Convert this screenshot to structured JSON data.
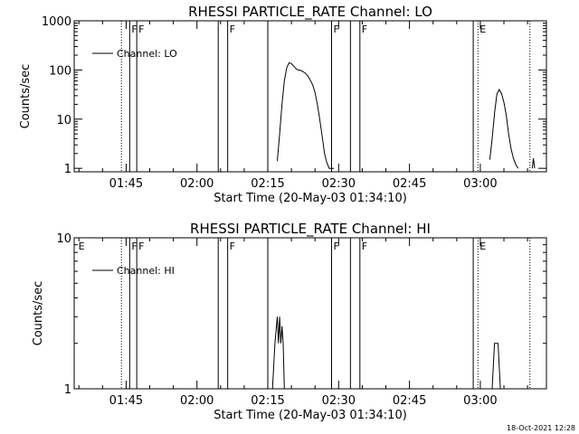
{
  "footer_timestamp": "18-Oct-2021 12:28",
  "chart_data": [
    {
      "type": "line",
      "title": "RHESSI PARTICLE_RATE Channel: LO",
      "xlabel": "Start Time (20-May-03 01:34:10)",
      "ylabel": "Counts/sec",
      "yscale": "log",
      "ylim": [
        0.85,
        1000
      ],
      "xlim": [
        "01:34",
        "03:14"
      ],
      "y_ticks": [
        "1",
        "10",
        "100",
        "1000"
      ],
      "x_ticks": [
        "01:45",
        "02:00",
        "02:15",
        "02:30",
        "02:45",
        "03:00"
      ],
      "legend": {
        "label": "Channel: LO",
        "position": "top-left"
      },
      "series": [
        {
          "name": "Channel: LO",
          "x": [
            "02:17",
            "02:17:30",
            "02:18",
            "02:18:30",
            "02:19",
            "02:19:30",
            "02:20",
            "02:20:30",
            "02:21",
            "02:21:30",
            "02:22",
            "02:22:30",
            "02:23",
            "02:23:30",
            "02:24",
            "02:24:30",
            "02:25",
            "02:25:30",
            "02:26",
            "02:26:30",
            "02:27",
            "02:27:30",
            "02:28",
            "02:28:30",
            "02:29"
          ],
          "y": [
            1.4,
            5,
            20,
            60,
            110,
            140,
            135,
            120,
            105,
            100,
            98,
            92,
            85,
            75,
            62,
            50,
            35,
            20,
            10,
            4.5,
            2,
            1.3,
            1,
            1,
            1
          ]
        },
        {
          "name": "",
          "x": [
            "03:02",
            "03:02:30",
            "03:03",
            "03:03:30",
            "03:04",
            "03:04:30",
            "03:05",
            "03:05:30",
            "03:06",
            "03:06:30",
            "03:07",
            "03:07:30",
            "03:08"
          ],
          "y": [
            1.5,
            4,
            13,
            32,
            40,
            33,
            22,
            12,
            5,
            2.5,
            1.6,
            1.2,
            1
          ]
        },
        {
          "name": "",
          "x": [
            "03:11",
            "03:11:15",
            "03:11:30"
          ],
          "y": [
            1,
            1.6,
            1
          ]
        }
      ],
      "markers": [
        {
          "time": "01:45:45",
          "label": "F",
          "style": "solid"
        },
        {
          "time": "01:47:15",
          "label": "F",
          "style": "solid"
        },
        {
          "time": "02:04:30",
          "label": "",
          "style": "solid"
        },
        {
          "time": "02:06:30",
          "label": "F",
          "style": "solid"
        },
        {
          "time": "02:15",
          "label": "",
          "style": "solid"
        },
        {
          "time": "02:28:30",
          "label": "F",
          "style": "solid"
        },
        {
          "time": "02:32:30",
          "label": "",
          "style": "solid"
        },
        {
          "time": "02:34:30",
          "label": "F",
          "style": "solid"
        },
        {
          "time": "02:58:30",
          "label": "",
          "style": "solid"
        },
        {
          "time": "01:44",
          "label": "",
          "style": "dotted"
        },
        {
          "time": "02:59:30",
          "label": "E",
          "style": "dotted"
        },
        {
          "time": "03:10:30",
          "label": "",
          "style": "dotted"
        }
      ]
    },
    {
      "type": "line",
      "title": "RHESSI PARTICLE_RATE Channel: HI",
      "xlabel": "Start Time (20-May-03 01:34:10)",
      "ylabel": "Counts/sec",
      "yscale": "log",
      "ylim": [
        1,
        10
      ],
      "xlim": [
        "01:34",
        "03:14"
      ],
      "y_ticks": [
        "1",
        "10"
      ],
      "x_ticks": [
        "01:45",
        "02:00",
        "02:15",
        "02:30",
        "02:45",
        "03:00"
      ],
      "legend": {
        "label": "Channel: HI",
        "position": "top-left"
      },
      "series": [
        {
          "name": "Channel: HI",
          "x": [
            "02:16",
            "02:16:30",
            "02:17",
            "02:17:15",
            "02:17:30",
            "02:17:45",
            "02:18",
            "02:18:15",
            "02:18:30",
            "02:19"
          ],
          "y": [
            1,
            2,
            3,
            2,
            3,
            2,
            2.6,
            2,
            1,
            1
          ]
        },
        {
          "name": "",
          "x": [
            "03:02:30",
            "03:03",
            "03:03:45",
            "03:04:15",
            "03:05"
          ],
          "y": [
            1,
            2,
            2,
            1,
            1
          ]
        }
      ],
      "markers": [
        {
          "time": "01:34:30",
          "label": "E",
          "style": "none"
        },
        {
          "time": "01:45:45",
          "label": "F",
          "style": "solid"
        },
        {
          "time": "01:47:15",
          "label": "F",
          "style": "solid"
        },
        {
          "time": "02:04:30",
          "label": "",
          "style": "solid"
        },
        {
          "time": "02:06:30",
          "label": "F",
          "style": "solid"
        },
        {
          "time": "02:15",
          "label": "",
          "style": "solid"
        },
        {
          "time": "02:28:30",
          "label": "F",
          "style": "solid"
        },
        {
          "time": "02:32:30",
          "label": "",
          "style": "solid"
        },
        {
          "time": "02:34:30",
          "label": "F",
          "style": "solid"
        },
        {
          "time": "02:58:30",
          "label": "",
          "style": "solid"
        },
        {
          "time": "01:44",
          "label": "",
          "style": "dotted"
        },
        {
          "time": "02:59:30",
          "label": "E",
          "style": "dotted"
        },
        {
          "time": "03:10:30",
          "label": "",
          "style": "dotted"
        }
      ]
    }
  ]
}
